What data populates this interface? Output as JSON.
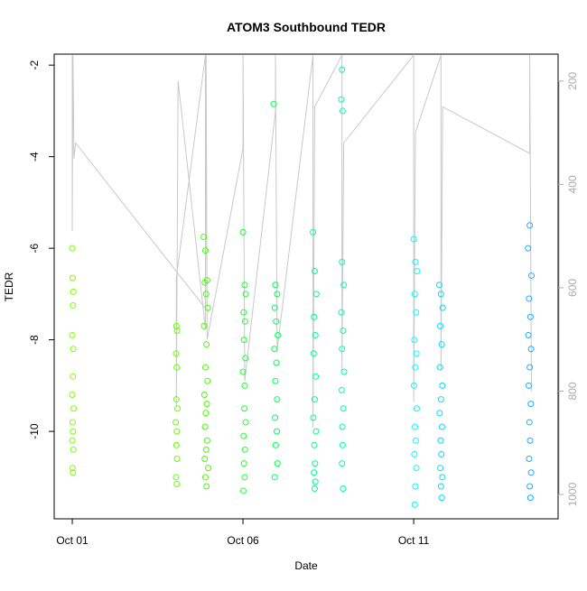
{
  "chart_data": {
    "type": "scatter",
    "title": "ATOM3 Southbound TEDR",
    "xlabel": "Date",
    "ylabel": "TEDR",
    "xlim": [
      -0.53,
      14.23
    ],
    "xticks": [
      {
        "value": 0,
        "label": "Oct 01"
      },
      {
        "value": 5,
        "label": "Oct 06"
      },
      {
        "value": 10,
        "label": "Oct 11"
      }
    ],
    "ylim": [
      -11.91,
      -1.76
    ],
    "yticks": [
      -2,
      -4,
      -6,
      -8,
      -10
    ],
    "y2lim": [
      1047,
      148
    ],
    "y2ticks": [
      200,
      400,
      600,
      800,
      1000
    ],
    "series": [
      {
        "color": "#80ff00",
        "x": [
          0.0,
          0.01,
          0.03,
          0.02,
          0.0,
          0.03,
          0.02,
          0.0,
          0.04,
          0.01,
          0.02,
          0.0,
          0.03,
          0.01,
          0.02
        ],
        "values": [
          -6.0,
          -6.65,
          -6.95,
          -7.25,
          -7.9,
          -8.2,
          -8.8,
          -9.2,
          -9.5,
          -9.8,
          -10.0,
          -10.2,
          -10.4,
          -10.8,
          -10.9
        ]
      },
      {
        "color": "#66ff00",
        "x": [
          3.05,
          3.07,
          3.04,
          3.06,
          3.05,
          3.08,
          3.03,
          3.06,
          3.05,
          3.07,
          3.04,
          3.06
        ],
        "values": [
          -7.7,
          -7.8,
          -8.3,
          -8.6,
          -9.3,
          -9.5,
          -9.8,
          -10.0,
          -10.3,
          -10.6,
          -11.0,
          -11.15
        ]
      },
      {
        "color": "#44ff00",
        "x": [
          3.85,
          3.9,
          3.95,
          3.88,
          3.92,
          3.97,
          3.86,
          3.93,
          3.9,
          3.96,
          3.87,
          3.94,
          3.91,
          3.89,
          3.95,
          3.92,
          3.88,
          3.98,
          3.9,
          3.93
        ],
        "values": [
          -5.75,
          -6.05,
          -6.7,
          -6.75,
          -7.0,
          -7.3,
          -7.7,
          -8.1,
          -8.6,
          -8.9,
          -9.2,
          -9.4,
          -9.6,
          -9.9,
          -10.2,
          -10.4,
          -10.6,
          -10.8,
          -11.0,
          -11.2
        ]
      },
      {
        "color": "#22ff33",
        "x": [
          5.0,
          5.05,
          5.08,
          5.02,
          5.06,
          5.03,
          5.07,
          5.0,
          5.05,
          5.04,
          5.08,
          5.02,
          5.06,
          5.03,
          5.05,
          5.01
        ],
        "values": [
          -5.65,
          -6.8,
          -7.0,
          -7.4,
          -7.6,
          -8.0,
          -8.4,
          -8.7,
          -9.0,
          -9.5,
          -9.8,
          -10.1,
          -10.4,
          -10.7,
          -11.0,
          -11.3
        ]
      },
      {
        "color": "#00ff55",
        "x": [
          5.9,
          5.95,
          6.0,
          5.93,
          5.97,
          6.02,
          5.92,
          5.98,
          5.95,
          6.0,
          5.94,
          5.99,
          5.96,
          6.01,
          5.93
        ],
        "values": [
          -2.85,
          -6.8,
          -7.0,
          -7.3,
          -7.6,
          -7.9,
          -8.2,
          -8.5,
          -8.9,
          -9.3,
          -9.7,
          -10.0,
          -10.3,
          -10.7,
          -11.0
        ]
      },
      {
        "color": "#00ff88",
        "x": [
          7.05,
          7.1,
          7.15,
          7.08,
          7.12,
          7.07,
          7.13,
          7.1,
          7.06,
          7.14,
          7.09,
          7.11,
          7.08,
          7.12,
          7.1
        ],
        "values": [
          -5.65,
          -6.5,
          -7.0,
          -7.5,
          -7.9,
          -8.3,
          -8.8,
          -9.3,
          -9.7,
          -10.0,
          -10.3,
          -10.7,
          -10.9,
          -11.1,
          -11.25
        ]
      },
      {
        "color": "#00ffaa",
        "x": [
          7.9,
          7.88,
          7.92,
          7.9,
          7.95,
          7.88,
          7.93,
          7.9,
          7.96,
          7.89,
          7.94,
          7.91,
          7.92,
          7.9,
          7.93
        ],
        "values": [
          -2.1,
          -2.75,
          -3.0,
          -6.3,
          -6.8,
          -7.4,
          -7.8,
          -8.2,
          -8.7,
          -9.1,
          -9.5,
          -9.9,
          -10.3,
          -10.7,
          -11.25
        ]
      },
      {
        "color": "#00ffff",
        "x": [
          10.0,
          10.05,
          10.1,
          10.03,
          10.07,
          10.02,
          10.08,
          10.05,
          10.01,
          10.09,
          10.04,
          10.06,
          10.02,
          10.08,
          10.05,
          10.03
        ],
        "values": [
          -5.8,
          -6.3,
          -6.5,
          -7.0,
          -7.4,
          -8.0,
          -8.3,
          -8.6,
          -9.0,
          -9.5,
          -9.9,
          -10.2,
          -10.5,
          -10.8,
          -11.2,
          -11.6
        ]
      },
      {
        "color": "#00ddff",
        "x": [
          10.75,
          10.8,
          10.85,
          10.78,
          10.82,
          10.77,
          10.84,
          10.8,
          10.76,
          10.83,
          10.79,
          10.81,
          10.78,
          10.84,
          10.8,
          10.82
        ],
        "values": [
          -6.8,
          -7.0,
          -7.3,
          -7.7,
          -8.1,
          -8.6,
          -9.0,
          -9.3,
          -9.6,
          -9.9,
          -10.2,
          -10.5,
          -10.8,
          -11.0,
          -11.2,
          -11.45
        ]
      },
      {
        "color": "#22aaff",
        "x": [
          13.4,
          13.35,
          13.45,
          13.38,
          13.42,
          13.36,
          13.44,
          13.4,
          13.37,
          13.43,
          13.39,
          13.41,
          13.38,
          13.44,
          13.4,
          13.42
        ],
        "values": [
          -5.5,
          -6.0,
          -6.6,
          -7.1,
          -7.5,
          -7.9,
          -8.2,
          -8.6,
          -9.0,
          -9.4,
          -9.8,
          -10.2,
          -10.6,
          -10.9,
          -11.2,
          -11.45
        ]
      }
    ],
    "lines": {
      "color": "#c8c8c8",
      "axis": "y2",
      "x": [
        0.0,
        0.0,
        0.02,
        0.05,
        0.1,
        3.9,
        3.9,
        3.05,
        3.05,
        3.1,
        3.9,
        3.92,
        3.95,
        5.0,
        5.0,
        5.05,
        5.95,
        5.95,
        6.0,
        7.05,
        7.05,
        7.1,
        7.9,
        7.9,
        7.95,
        10.0,
        10.0,
        10.05,
        10.8,
        10.8,
        10.85,
        13.4,
        13.4,
        13.45
      ],
      "values": [
        150,
        490,
        150,
        350,
        320,
        640,
        150,
        580,
        830,
        200,
        680,
        150,
        700,
        330,
        150,
        780,
        260,
        150,
        720,
        150,
        870,
        250,
        150,
        760,
        320,
        150,
        820,
        300,
        150,
        760,
        250,
        340,
        150,
        800
      ]
    }
  }
}
